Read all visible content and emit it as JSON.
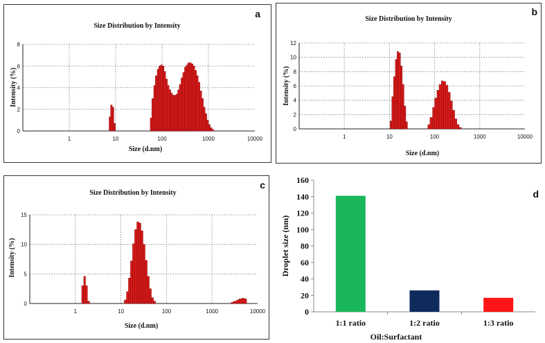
{
  "colors": {
    "bar_red": "#d61a1a",
    "bar_red_edge": "#7a0000",
    "green": "#1ab75a",
    "navy": "#0f2a5c",
    "red": "#ff1515",
    "grid": "#777777"
  },
  "chart_data": [
    {
      "panel": "a",
      "type": "histogram",
      "title": "Size Distribution by Intensity",
      "xlabel": "Size (d.nm)",
      "ylabel": "Intensity (%)",
      "xscale": "log",
      "xlim": [
        0.1,
        10000
      ],
      "ylim": [
        0,
        8
      ],
      "xticks": [
        "1",
        "10",
        "100",
        "1000",
        "10000"
      ],
      "yticks": [
        "0",
        "2",
        "4",
        "6",
        "8"
      ],
      "bins": [
        [
          7.5,
          1.3
        ],
        [
          8.1,
          2.4
        ],
        [
          8.8,
          2.2
        ],
        [
          9.5,
          0.7
        ],
        [
          58,
          1.2
        ],
        [
          63,
          3.0
        ],
        [
          69,
          4.2
        ],
        [
          75,
          5.1
        ],
        [
          82,
          5.7
        ],
        [
          89,
          6.0
        ],
        [
          97,
          6.1
        ],
        [
          106,
          6.0
        ],
        [
          115,
          5.5
        ],
        [
          125,
          4.8
        ],
        [
          136,
          4.2
        ],
        [
          148,
          3.8
        ],
        [
          161,
          3.5
        ],
        [
          175,
          3.3
        ],
        [
          191,
          3.3
        ],
        [
          208,
          3.4
        ],
        [
          226,
          3.8
        ],
        [
          246,
          4.3
        ],
        [
          268,
          4.9
        ],
        [
          292,
          5.4
        ],
        [
          318,
          5.9
        ],
        [
          346,
          6.1
        ],
        [
          377,
          6.3
        ],
        [
          411,
          6.3
        ],
        [
          447,
          6.2
        ],
        [
          487,
          6.0
        ],
        [
          530,
          5.6
        ],
        [
          577,
          5.1
        ],
        [
          628,
          4.5
        ],
        [
          684,
          3.7
        ],
        [
          745,
          3.0
        ],
        [
          811,
          2.2
        ],
        [
          883,
          1.6
        ],
        [
          961,
          1.0
        ],
        [
          1046,
          0.6
        ],
        [
          1139,
          0.3
        ],
        [
          1240,
          0.15
        ]
      ]
    },
    {
      "panel": "b",
      "type": "histogram",
      "title": "Size Distribution by Intensity",
      "xlabel": "Size (d.nm)",
      "ylabel": "Intensity (%)",
      "xscale": "log",
      "xlim": [
        0.1,
        10000
      ],
      "ylim": [
        0,
        12
      ],
      "xticks": [
        "1",
        "10",
        "100",
        "1000",
        "10000"
      ],
      "yticks": [
        "0",
        "2",
        "4",
        "6",
        "8",
        "10",
        "12"
      ],
      "bins": [
        [
          10.8,
          1.1
        ],
        [
          11.8,
          4.5
        ],
        [
          12.9,
          7.3
        ],
        [
          14.1,
          9.7
        ],
        [
          15.4,
          10.8
        ],
        [
          16.8,
          10.6
        ],
        [
          18.4,
          8.8
        ],
        [
          20.1,
          6.2
        ],
        [
          22.0,
          3.2
        ],
        [
          24.0,
          1.0
        ],
        [
          75,
          0.6
        ],
        [
          84,
          1.6
        ],
        [
          95,
          3.0
        ],
        [
          106,
          4.3
        ],
        [
          119,
          5.4
        ],
        [
          133,
          6.2
        ],
        [
          149,
          6.7
        ],
        [
          167,
          6.6
        ],
        [
          187,
          6.1
        ],
        [
          210,
          5.1
        ],
        [
          235,
          3.9
        ],
        [
          263,
          2.6
        ],
        [
          295,
          1.4
        ],
        [
          330,
          0.6
        ],
        [
          370,
          0.2
        ]
      ]
    },
    {
      "panel": "c",
      "type": "histogram",
      "title": "Size Distribution by Intensity",
      "xlabel": "Size (d.nm)",
      "ylabel": "Intensity (%)",
      "xscale": "log",
      "xlim": [
        0.1,
        10000
      ],
      "ylim": [
        0,
        15
      ],
      "xticks": [
        "1",
        "10",
        "100",
        "1000",
        "10000"
      ],
      "yticks": [
        "0",
        "5",
        "10",
        "15"
      ],
      "bins": [
        [
          1.45,
          3.0
        ],
        [
          1.6,
          4.6
        ],
        [
          1.75,
          3.0
        ],
        [
          1.95,
          0.4
        ],
        [
          12.5,
          0.6
        ],
        [
          13.9,
          2.0
        ],
        [
          15.4,
          4.3
        ],
        [
          17.1,
          7.2
        ],
        [
          19.0,
          10.1
        ],
        [
          21.1,
          12.5
        ],
        [
          23.5,
          13.8
        ],
        [
          26.1,
          13.6
        ],
        [
          29.0,
          12.3
        ],
        [
          32.2,
          10.0
        ],
        [
          35.8,
          7.3
        ],
        [
          39.8,
          4.6
        ],
        [
          44.2,
          2.5
        ],
        [
          49.1,
          1.0
        ],
        [
          54.6,
          0.4
        ],
        [
          2800,
          0.2
        ],
        [
          3200,
          0.4
        ],
        [
          3700,
          0.6
        ],
        [
          4200,
          0.8
        ],
        [
          4800,
          0.9
        ],
        [
          5400,
          0.8
        ]
      ]
    },
    {
      "panel": "d",
      "type": "bar",
      "categories": [
        "1:1 ratio",
        "1:2 ratio",
        "1:3 ratio"
      ],
      "values": [
        141,
        26,
        17
      ],
      "colors": [
        "#1ab75a",
        "#0f2a5c",
        "#ff1515"
      ],
      "xlabel": "Oil:Surfactant",
      "ylabel": "Droplet size (nm)",
      "ylim": [
        0,
        160
      ],
      "yticks": [
        "0",
        "20",
        "40",
        "60",
        "80",
        "100",
        "120",
        "140",
        "160"
      ]
    }
  ]
}
